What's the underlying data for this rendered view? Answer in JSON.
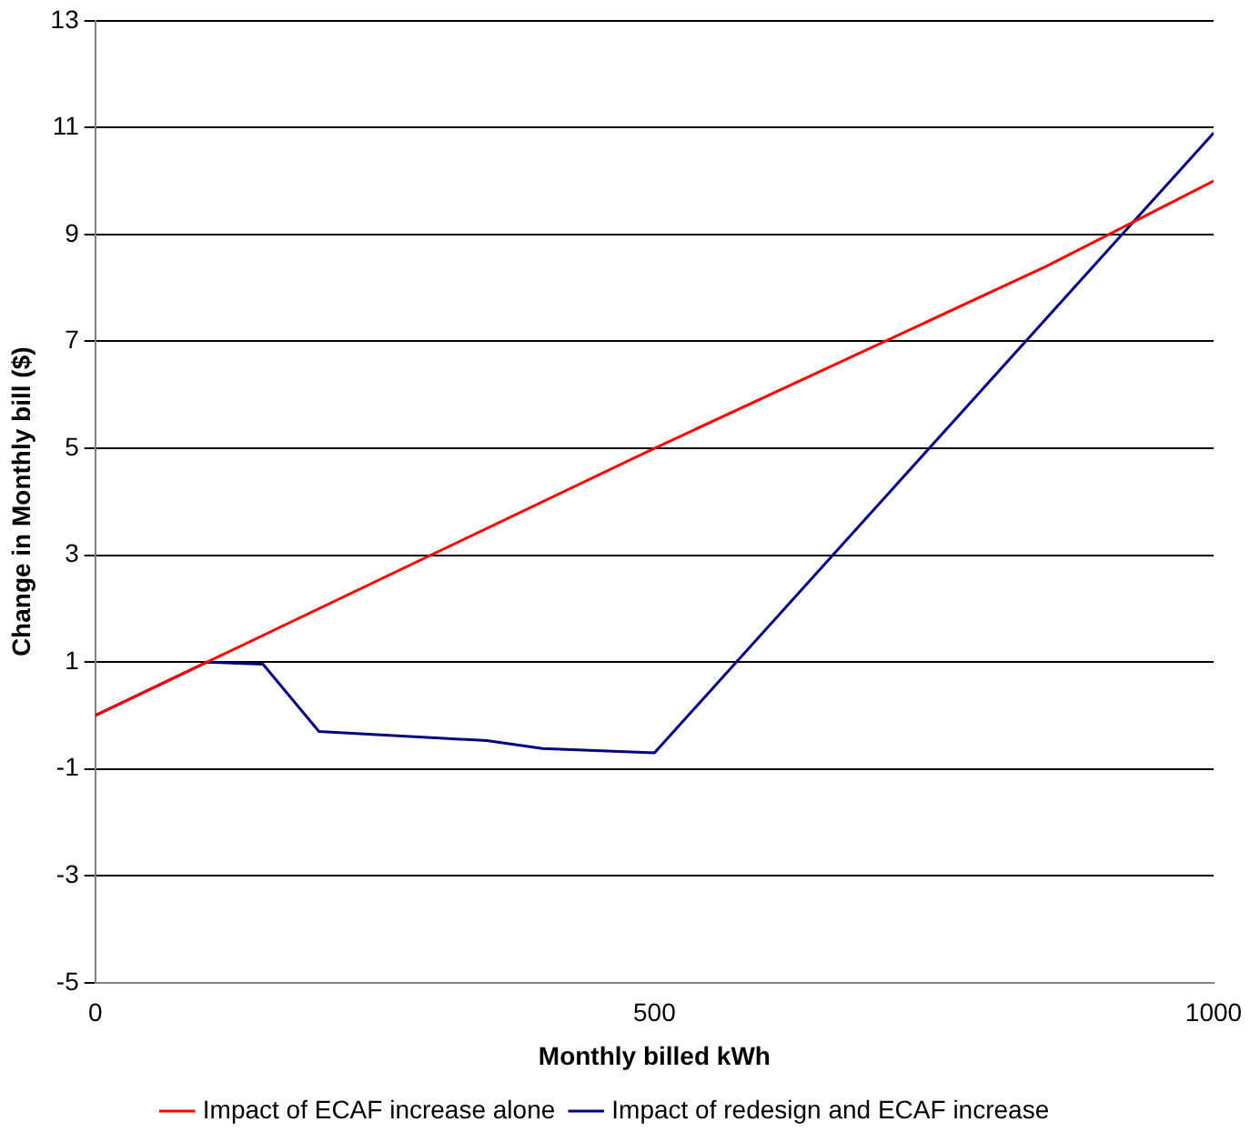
{
  "chart_data": {
    "type": "line",
    "xlabel": "Monthly billed kWh",
    "ylabel": "Change in Monthly bill ($)",
    "xlim": [
      0,
      1000
    ],
    "xticks": [
      0,
      500,
      1000
    ],
    "ylim": [
      -5,
      13
    ],
    "yticks": [
      -5,
      -3,
      -1,
      1,
      3,
      5,
      7,
      9,
      11,
      13
    ],
    "grid": "y",
    "legend": "bottom",
    "marker": "none",
    "line_style": "solid",
    "series": [
      {
        "name": "Impact of ECAF increase alone",
        "color": "#ff0000",
        "x": [
          0,
          100,
          500,
          850,
          1000
        ],
        "values": [
          0,
          1,
          5,
          8.4,
          10
        ]
      },
      {
        "name": "Impact of redesign and ECAF increase",
        "color": "#000080",
        "x": [
          0,
          100,
          150,
          200,
          350,
          400,
          500,
          1000
        ],
        "values": [
          0,
          1,
          0.96,
          -0.3,
          -0.47,
          -0.62,
          -0.7,
          10.9
        ]
      }
    ]
  }
}
